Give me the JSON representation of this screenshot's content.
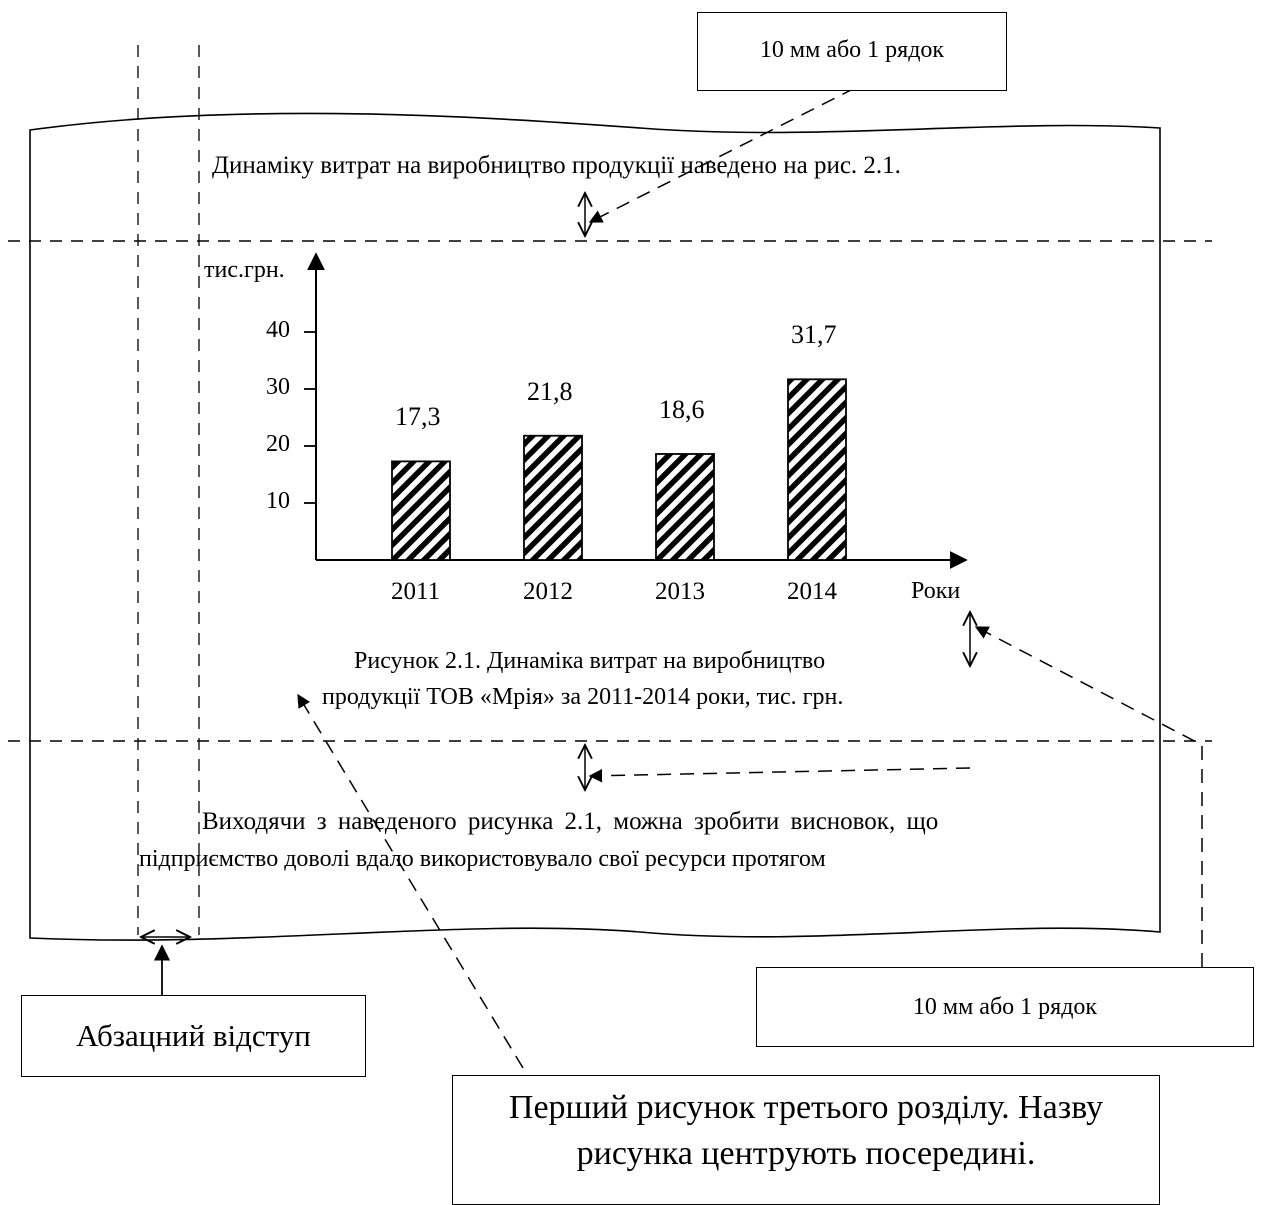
{
  "page_text": {
    "intro_sentence": "Динаміку витрат на виробництво продукції наведено на рис. 2.1.",
    "caption_line1": "Рисунок 2.1. Динаміка витрат на виробництво",
    "caption_line2": "продукції ТОВ «Мрія» за 2011-2014 роки, тис. грн.",
    "conclusion_line1": "Виходячи з наведеного рисунка 2.1, можна зробити висновок, що",
    "conclusion_line2": "підприємство доволі вдало використовувало свої ресурси протягом"
  },
  "callouts": {
    "spacing_top": "10 мм або 1 рядок",
    "spacing_bottom": "10 мм або 1 рядок",
    "indent": "Абзацний відступ",
    "figure_note_line1": "Перший рисунок третього розділу. Назву",
    "figure_note_line2": "рисунка центрують посередині."
  },
  "chart_data": {
    "type": "bar",
    "categories": [
      "2011",
      "2012",
      "2013",
      "2014"
    ],
    "values": [
      17.3,
      21.8,
      18.6,
      31.7
    ],
    "value_labels": [
      "17,3",
      "21,8",
      "18,6",
      "31,7"
    ],
    "ylabel": "тис.грн.",
    "xlabel": "Роки",
    "yticks": [
      10,
      20,
      30,
      40
    ],
    "ylim": [
      0,
      40
    ],
    "bar_fill": "diagonal-hatch",
    "grid": false
  },
  "colors": {
    "ink": "#000000",
    "paper": "#ffffff"
  }
}
